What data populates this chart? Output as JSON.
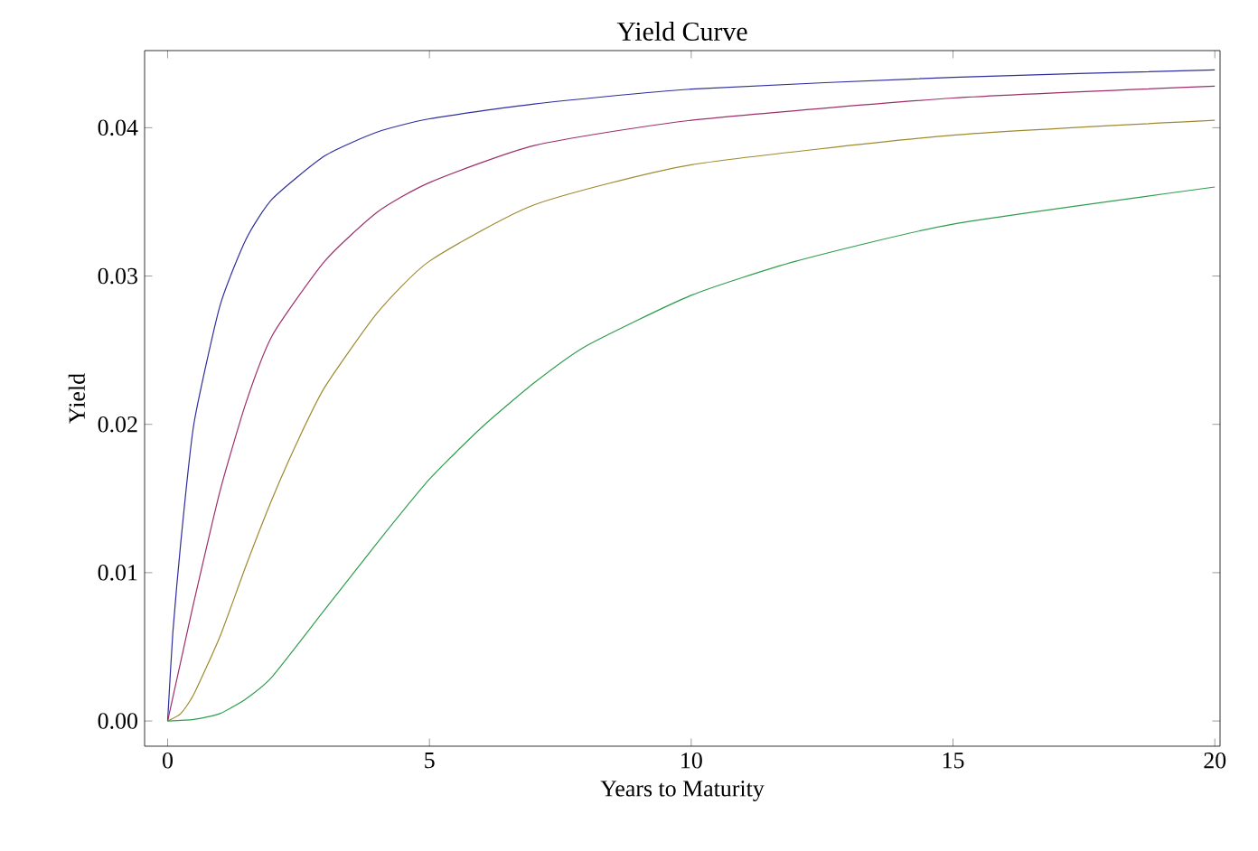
{
  "chart_data": {
    "type": "line",
    "title": "Yield Curve",
    "xlabel": "Years to Maturity",
    "ylabel": "Yield",
    "xlim": [
      -0.44,
      20.1
    ],
    "ylim": [
      -0.0017,
      0.0452
    ],
    "xticks": [
      0,
      5,
      10,
      15,
      20
    ],
    "yticks": [
      {
        "value": 0,
        "label": "0.00"
      },
      {
        "value": 0.01,
        "label": "0.01"
      },
      {
        "value": 0.02,
        "label": "0.02"
      },
      {
        "value": 0.03,
        "label": "0.03"
      },
      {
        "value": 0.04,
        "label": "0.04"
      }
    ],
    "grid": false,
    "marker": "none",
    "line_style": "solid",
    "series": [
      {
        "color": "#2e2e9e",
        "x": [
          0,
          0.1,
          0.25,
          0.5,
          1,
          1.5,
          2,
          3,
          4,
          5,
          7,
          10,
          15,
          20
        ],
        "values": [
          0,
          0.006,
          0.012,
          0.02,
          0.028,
          0.0325,
          0.0352,
          0.0381,
          0.0397,
          0.0406,
          0.0416,
          0.0426,
          0.0434,
          0.0439
        ]
      },
      {
        "color": "#9e2e6a",
        "x": [
          0,
          0.25,
          0.5,
          1,
          1.5,
          2,
          3,
          4,
          5,
          7,
          10,
          15,
          20
        ],
        "values": [
          0,
          0.004,
          0.008,
          0.0155,
          0.0215,
          0.026,
          0.031,
          0.0343,
          0.0363,
          0.0388,
          0.0405,
          0.042,
          0.0428
        ]
      },
      {
        "color": "#9e8a2e",
        "x": [
          0,
          0.25,
          0.5,
          1,
          1.5,
          2,
          2.5,
          3,
          4,
          5,
          7,
          10,
          15,
          20
        ],
        "values": [
          0,
          0.0005,
          0.0018,
          0.0057,
          0.0105,
          0.015,
          0.019,
          0.0225,
          0.0275,
          0.031,
          0.0348,
          0.0375,
          0.0395,
          0.0405
        ]
      },
      {
        "color": "#2e9e4e",
        "x": [
          0,
          0.5,
          1,
          1.5,
          2,
          3,
          4,
          5,
          6,
          7,
          8,
          10,
          12,
          15,
          20
        ],
        "values": [
          0,
          0.0001,
          0.0005,
          0.0015,
          0.003,
          0.0075,
          0.012,
          0.0163,
          0.0198,
          0.0228,
          0.0253,
          0.0287,
          0.031,
          0.0335,
          0.036
        ]
      }
    ]
  }
}
